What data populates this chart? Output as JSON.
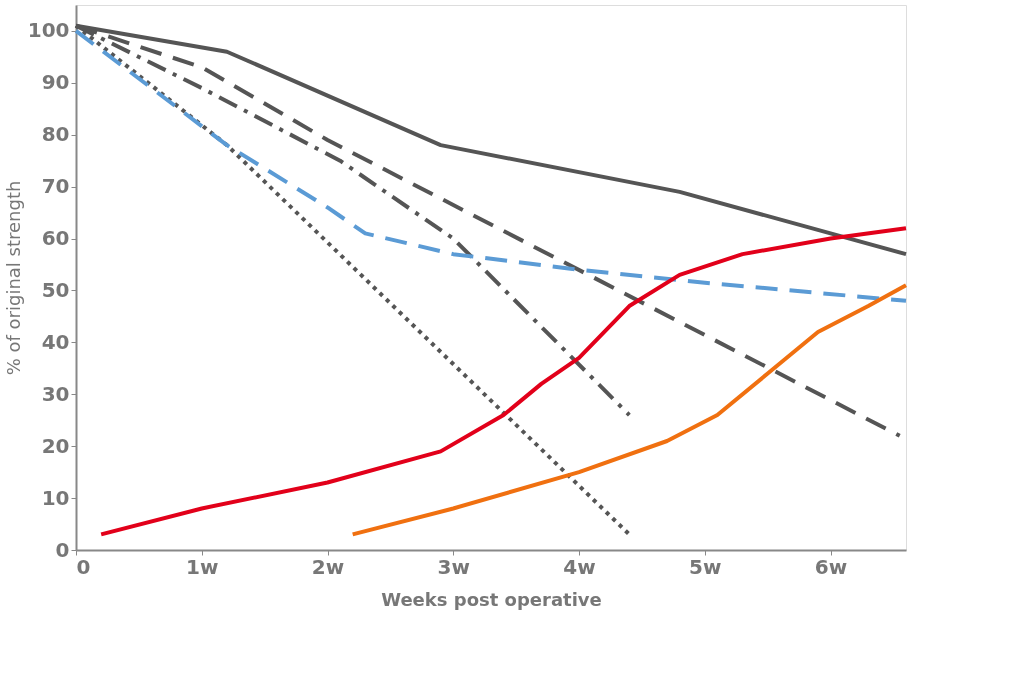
{
  "chart_data": {
    "type": "line",
    "xlabel": "Weeks post operative",
    "ylabel": "% of original strength",
    "xlim": [
      0,
      6.6
    ],
    "ylim": [
      0,
      105
    ],
    "xticks": [
      0,
      {
        "value": 1,
        "label": "1w"
      },
      {
        "value": 2,
        "label": "2w"
      },
      {
        "value": 3,
        "label": "3w"
      },
      {
        "value": 4,
        "label": "4w"
      },
      {
        "value": 5,
        "label": "5w"
      },
      {
        "value": 6,
        "label": "6w"
      }
    ],
    "yticks": [
      0,
      10,
      20,
      30,
      40,
      50,
      60,
      70,
      80,
      90,
      100
    ],
    "grid": false,
    "marker": "none",
    "series": [
      {
        "color": "#555555",
        "line_style": "solid",
        "x": [
          0,
          1.2,
          2.9,
          4.8,
          6.6
        ],
        "values": [
          101,
          96,
          78,
          69,
          57
        ]
      },
      {
        "color": "#555555",
        "line_style": "dashed",
        "x": [
          0,
          1,
          2,
          6.55
        ],
        "values": [
          101,
          93,
          79,
          22
        ]
      },
      {
        "color": "#555555",
        "line_style": "dashdot",
        "x": [
          0,
          1,
          2.1,
          3,
          4.4
        ],
        "values": [
          101,
          89,
          75,
          60,
          26
        ]
      },
      {
        "color": "#555555",
        "line_style": "dotted",
        "x": [
          0,
          1.2,
          4.4
        ],
        "values": [
          101,
          78,
          3
        ]
      },
      {
        "color": "#5b9bd5",
        "line_style": "dashed",
        "x": [
          0,
          1.2,
          2,
          2.3,
          3,
          4,
          5,
          6.6
        ],
        "values": [
          100,
          78,
          66,
          61,
          57,
          54,
          51.5,
          48
        ]
      },
      {
        "color": "#e2001a",
        "line_style": "solid",
        "x": [
          0.2,
          1,
          2,
          2.9,
          3.4,
          3.7,
          4,
          4.4,
          4.8,
          5.3,
          6,
          6.6
        ],
        "values": [
          3,
          8,
          13,
          19,
          26,
          32,
          37,
          47,
          53,
          57,
          60,
          62
        ]
      },
      {
        "color": "#f07010",
        "line_style": "solid",
        "x": [
          2.2,
          3,
          4,
          4.7,
          5.1,
          5.5,
          5.9,
          6.3,
          6.6
        ],
        "values": [
          3,
          8,
          15,
          21,
          26,
          34,
          42,
          47,
          51
        ]
      }
    ]
  }
}
